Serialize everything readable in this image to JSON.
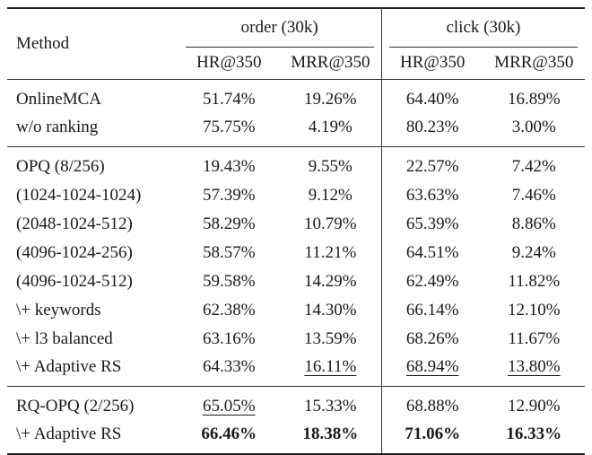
{
  "header": {
    "method": "Method",
    "groups": [
      "order (30k)",
      "click (30k)"
    ],
    "metrics": [
      "HR@350",
      "MRR@350",
      "HR@350",
      "MRR@350"
    ]
  },
  "rows": [
    {
      "method": "OnlineMCA",
      "values": [
        "51.74%",
        "19.26%",
        "64.40%",
        "16.89%"
      ]
    },
    {
      "method": "w/o ranking",
      "values": [
        "75.75%",
        "4.19%",
        "80.23%",
        "3.00%"
      ]
    },
    {
      "method": "OPQ (8/256)",
      "values": [
        "19.43%",
        "9.55%",
        "22.57%",
        "7.42%"
      ]
    },
    {
      "method": "(1024-1024-1024)",
      "values": [
        "57.39%",
        "9.12%",
        "63.63%",
        "7.46%"
      ]
    },
    {
      "method": "(2048-1024-512)",
      "values": [
        "58.29%",
        "10.79%",
        "65.39%",
        "8.86%"
      ]
    },
    {
      "method": "(4096-1024-256)",
      "values": [
        "58.57%",
        "11.21%",
        "64.51%",
        "9.24%"
      ]
    },
    {
      "method": "(4096-1024-512)",
      "values": [
        "59.58%",
        "14.29%",
        "62.49%",
        "11.82%"
      ]
    },
    {
      "method": "\\+ keywords",
      "values": [
        "62.38%",
        "14.30%",
        "66.14%",
        "12.10%"
      ]
    },
    {
      "method": "\\+ l3 balanced",
      "values": [
        "63.16%",
        "13.59%",
        "68.26%",
        "11.67%"
      ]
    },
    {
      "method": "\\+ Adaptive RS",
      "values": [
        "64.33%",
        "16.11%",
        "68.94%",
        "13.80%"
      ]
    },
    {
      "method": "RQ-OPQ (2/256)",
      "values": [
        "65.05%",
        "15.33%",
        "68.88%",
        "12.90%"
      ]
    },
    {
      "method": "\\+ Adaptive RS",
      "values": [
        "66.46%",
        "18.38%",
        "71.06%",
        "16.33%"
      ]
    }
  ],
  "emphasis": {
    "bold": [
      "11.0",
      "11.1",
      "11.2",
      "11.3"
    ],
    "underline": [
      "9.1",
      "9.2",
      "9.3",
      "10.0"
    ]
  }
}
